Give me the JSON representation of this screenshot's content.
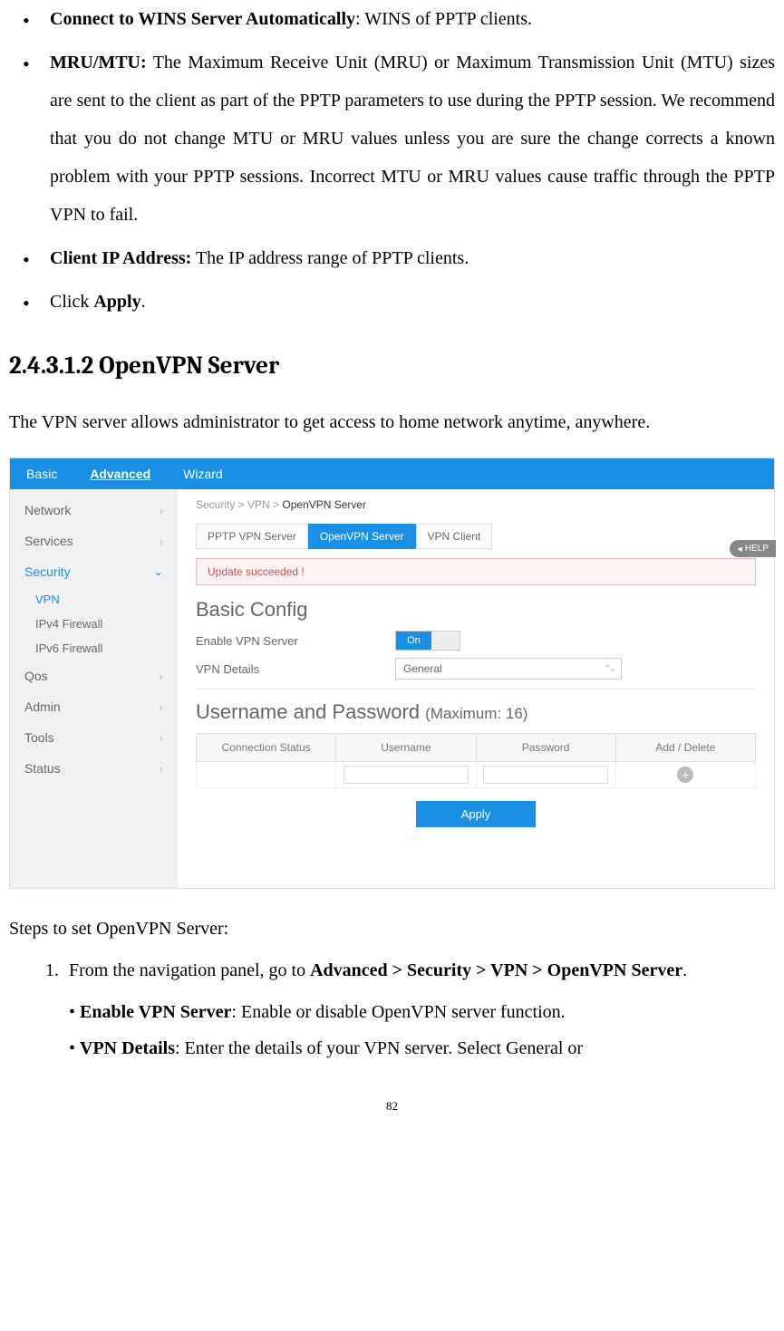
{
  "bullets": {
    "b1_bold": "Connect to WINS Server Automatically",
    "b1_rest": ": WINS of PPTP clients.",
    "b2_bold": "MRU/MTU:",
    "b2_rest": " The Maximum Receive Unit (MRU) or Maximum Transmission Unit (MTU) sizes are sent to the client as part of the PPTP parameters to use during the PPTP session. We recommend that you do not change MTU or MRU values unless you are sure the change corrects a known problem with your PPTP sessions. Incorrect MTU or MRU values cause traffic through the PPTP VPN to fail.",
    "b3_bold": "Client IP Address:",
    "b3_rest": " The IP address range of PPTP clients.",
    "b4_pre": "Click ",
    "b4_bold": "Apply",
    "b4_post": "."
  },
  "heading": "2.4.3.1.2 OpenVPN Server",
  "intro": "The VPN server allows administrator to get access to home network anytime, anywhere.",
  "ui": {
    "tabs": {
      "basic": "Basic",
      "advanced": "Advanced",
      "wizard": "Wizard"
    },
    "sidebar": {
      "network": "Network",
      "services": "Services",
      "security": "Security",
      "vpn": "VPN",
      "ipv4fw": "IPv4 Firewall",
      "ipv6fw": "IPv6 Firewall",
      "qos": "Qos",
      "admin": "Admin",
      "tools": "Tools",
      "status": "Status"
    },
    "breadcrumb_pre": "Security > VPN > ",
    "breadcrumb_cur": "OpenVPN Server",
    "subtabs": {
      "pptp": "PPTP VPN Server",
      "openvpn": "OpenVPN Server",
      "client": "VPN Client"
    },
    "alert": "Update succeeded !",
    "help": "HELP",
    "basic_config": "Basic Config",
    "enable_label": "Enable VPN Server",
    "toggle_on": "On",
    "details_label": "VPN Details",
    "details_value": "General",
    "userpass_title": "Username and Password ",
    "userpass_max": "(Maximum: 16)",
    "th_conn": "Connection Status",
    "th_user": "Username",
    "th_pass": "Password",
    "th_add": "Add / Delete",
    "apply": "Apply"
  },
  "steps": {
    "intro": "Steps to set OpenVPN Server:",
    "s1_pre": "From the navigation panel, go to ",
    "s1_bold": "Advanced > Security > VPN > OpenVPN Server",
    "s1_post": ".",
    "sb1_bold": "Enable VPN Server",
    "sb1_rest": ": Enable or disable OpenVPN server function.",
    "sb2_bold": "VPN Details",
    "sb2_rest": ": Enter the details of your VPN server. Select General or"
  },
  "page_num": "82"
}
